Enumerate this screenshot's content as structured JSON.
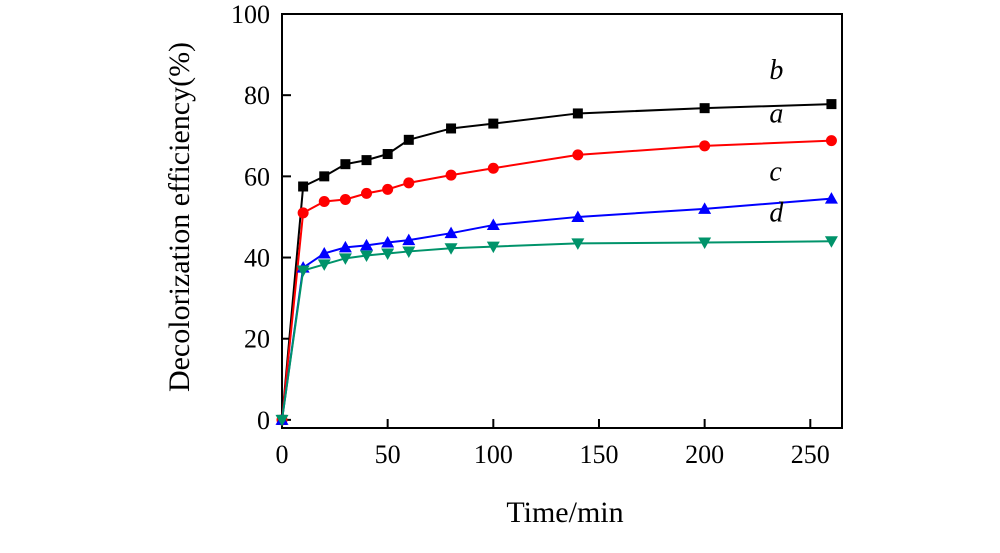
{
  "chart_data": {
    "type": "line",
    "xlabel": "Time/min",
    "ylabel": "Decolorization efficiency(%)",
    "xlim": [
      0,
      265
    ],
    "ylim": [
      -2,
      100
    ],
    "xticks": [
      0,
      50,
      100,
      150,
      200,
      250
    ],
    "yticks": [
      0,
      20,
      40,
      60,
      80,
      100
    ],
    "grid": false,
    "series": [
      {
        "name": "b",
        "color": "#000000",
        "marker": "square",
        "x": [
          0,
          10,
          20,
          30,
          40,
          50,
          60,
          80,
          100,
          140,
          200,
          260
        ],
        "y": [
          0,
          57.5,
          60,
          63,
          64,
          65.5,
          69,
          71.8,
          73,
          75.5,
          76.8,
          77.8
        ]
      },
      {
        "name": "a",
        "color": "#ff0000",
        "marker": "circle",
        "x": [
          0,
          10,
          20,
          30,
          40,
          50,
          60,
          80,
          100,
          140,
          200,
          260
        ],
        "y": [
          0,
          51,
          53.8,
          54.3,
          55.8,
          56.8,
          58.4,
          60.3,
          62,
          65.3,
          67.5,
          68.8
        ]
      },
      {
        "name": "c",
        "color": "#0000ff",
        "marker": "triangle-up",
        "x": [
          0,
          10,
          20,
          30,
          40,
          50,
          60,
          80,
          100,
          140,
          200,
          260
        ],
        "y": [
          0,
          37.5,
          41,
          42.5,
          43,
          43.7,
          44.3,
          46,
          48,
          50,
          52,
          54.5
        ]
      },
      {
        "name": "d",
        "color": "#00936a",
        "marker": "triangle-down",
        "x": [
          0,
          10,
          20,
          30,
          40,
          50,
          60,
          80,
          100,
          140,
          200,
          260
        ],
        "y": [
          0,
          36.8,
          38.3,
          39.8,
          40.5,
          41,
          41.5,
          42.3,
          42.7,
          43.5,
          43.7,
          44
        ]
      }
    ]
  }
}
